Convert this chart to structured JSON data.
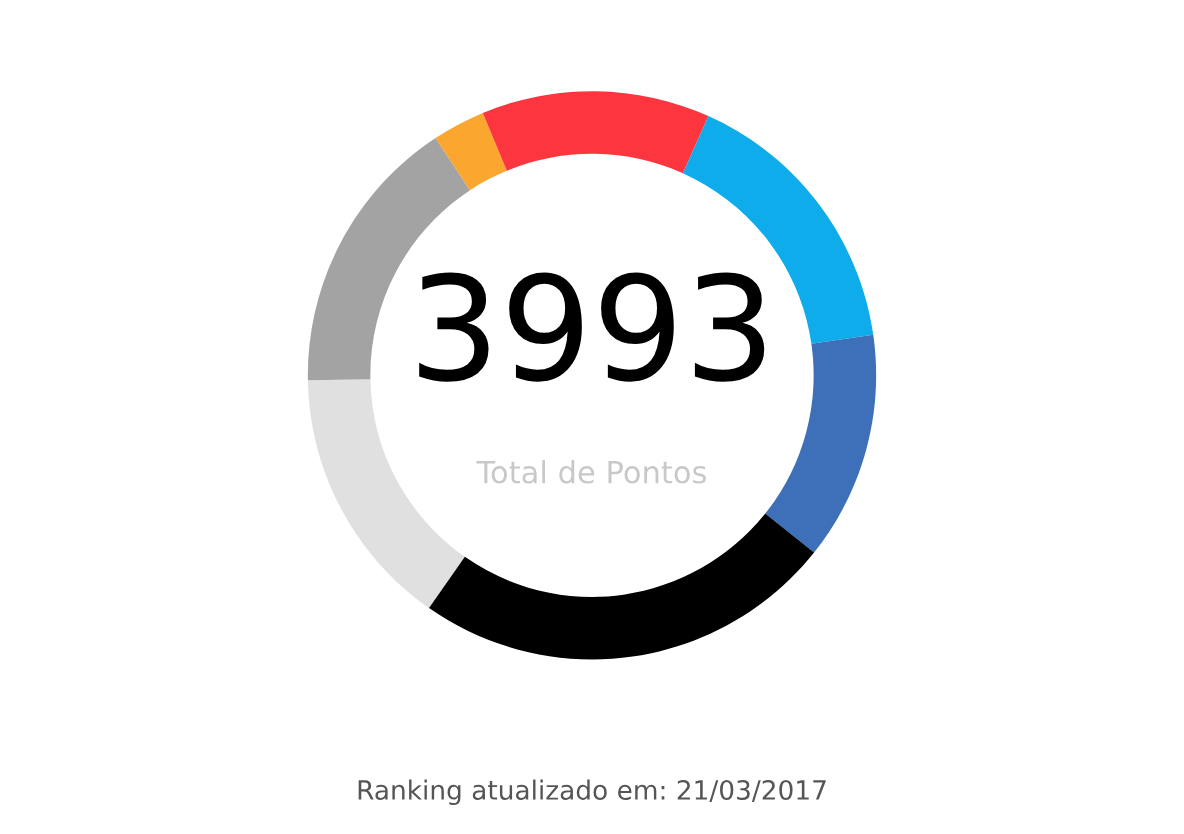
{
  "chart_data": {
    "type": "donut",
    "categories": [
      null,
      null,
      null,
      null,
      null,
      null,
      null
    ],
    "values": [
      15,
      16,
      3,
      13,
      16,
      13,
      24
    ],
    "colors": [
      "#e0e0e0",
      "#a3a3a3",
      "#fba62f",
      "#fd353e",
      "#0eacea",
      "#3d70b9",
      "#000000"
    ],
    "annotations": [
      "3993",
      "Total de Pontos",
      "Ranking atualizado em: 21/03/2017"
    ]
  }
}
